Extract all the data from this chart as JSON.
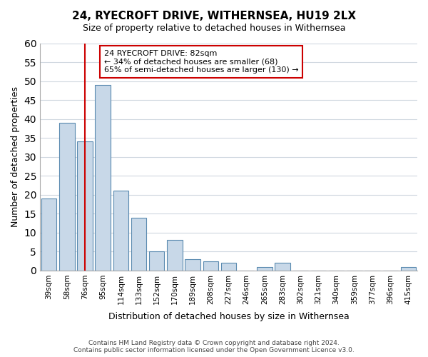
{
  "title": "24, RYECROFT DRIVE, WITHERNSEA, HU19 2LX",
  "subtitle": "Size of property relative to detached houses in Withernsea",
  "xlabel": "Distribution of detached houses by size in Withernsea",
  "ylabel": "Number of detached properties",
  "bar_labels": [
    "39sqm",
    "58sqm",
    "76sqm",
    "95sqm",
    "114sqm",
    "133sqm",
    "152sqm",
    "170sqm",
    "189sqm",
    "208sqm",
    "227sqm",
    "246sqm",
    "265sqm",
    "283sqm",
    "302sqm",
    "321sqm",
    "340sqm",
    "359sqm",
    "377sqm",
    "396sqm",
    "415sqm"
  ],
  "bar_values": [
    19,
    39,
    34,
    49,
    21,
    14,
    5,
    8,
    3,
    2.5,
    2,
    0,
    1,
    2,
    0,
    0,
    0,
    0,
    0,
    0,
    1
  ],
  "bar_color": "#c8d8e8",
  "bar_edge_color": "#5a8ab0",
  "vline_x": 2.0,
  "vline_color": "#cc0000",
  "annotation_text": "24 RYECROFT DRIVE: 82sqm\n← 34% of detached houses are smaller (68)\n65% of semi-detached houses are larger (130) →",
  "annotation_box_color": "#ffffff",
  "annotation_box_edge": "#cc0000",
  "ylim": [
    0,
    60
  ],
  "yticks": [
    0,
    5,
    10,
    15,
    20,
    25,
    30,
    35,
    40,
    45,
    50,
    55,
    60
  ],
  "footer_line1": "Contains HM Land Registry data © Crown copyright and database right 2024.",
  "footer_line2": "Contains public sector information licensed under the Open Government Licence v3.0.",
  "background_color": "#ffffff",
  "grid_color": "#d0d8e0"
}
